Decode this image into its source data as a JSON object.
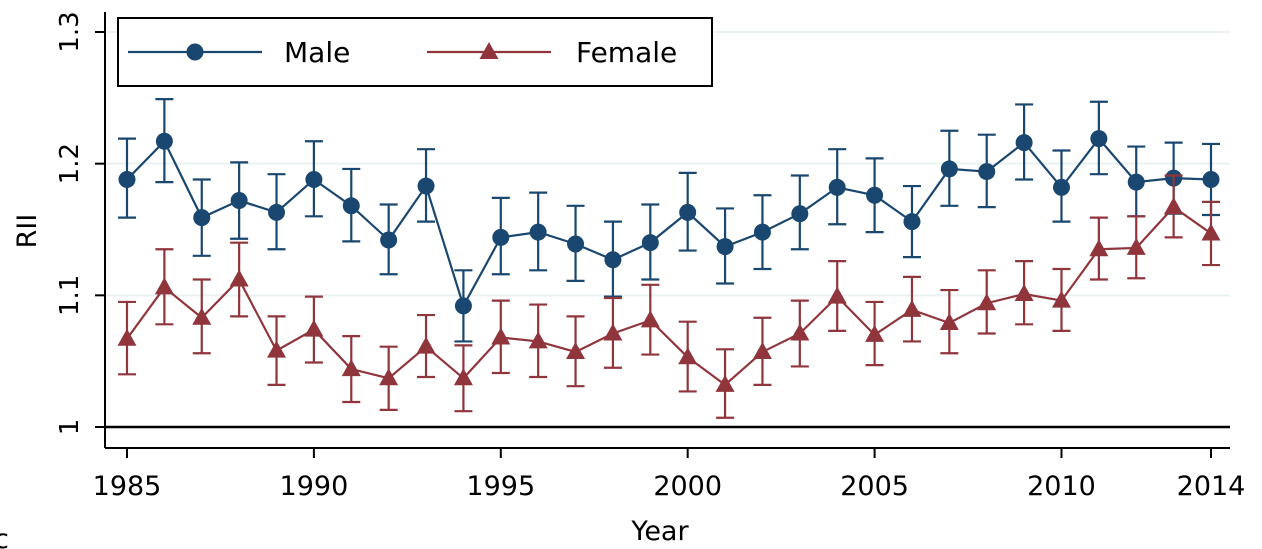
{
  "chart_data": {
    "type": "line",
    "xlabel": "Year",
    "ylabel": "RII",
    "xlim": [
      1984.4,
      2015
    ],
    "ylim": [
      0.965,
      1.305
    ],
    "x_ticks": [
      1985,
      1990,
      1995,
      2000,
      2005,
      2010,
      2014
    ],
    "y_ticks": [
      1,
      1.1,
      1.2,
      1.3
    ],
    "y_tick_labels": [
      "1",
      "1.1",
      "1.2",
      "1.3"
    ],
    "reference_line": 1,
    "grid": "horizontal",
    "legend_placement": "top-left",
    "x": [
      1985,
      1986,
      1987,
      1988,
      1989,
      1990,
      1991,
      1992,
      1993,
      1994,
      1995,
      1996,
      1997,
      1998,
      1999,
      2000,
      2001,
      2002,
      2003,
      2004,
      2005,
      2006,
      2007,
      2008,
      2009,
      2010,
      2011,
      2012,
      2013,
      2014
    ],
    "series": [
      {
        "name": "Male",
        "color": "#1a476f",
        "marker": "circle",
        "values": [
          1.188,
          1.217,
          1.159,
          1.172,
          1.163,
          1.188,
          1.168,
          1.142,
          1.183,
          1.092,
          1.144,
          1.148,
          1.139,
          1.127,
          1.14,
          1.163,
          1.137,
          1.148,
          1.162,
          1.182,
          1.176,
          1.156,
          1.196,
          1.194,
          1.216,
          1.182,
          1.219,
          1.186,
          1.189,
          1.188
        ],
        "lower": [
          1.159,
          1.186,
          1.13,
          1.143,
          1.135,
          1.16,
          1.141,
          1.116,
          1.156,
          1.065,
          1.116,
          1.119,
          1.111,
          1.099,
          1.112,
          1.134,
          1.109,
          1.12,
          1.135,
          1.154,
          1.148,
          1.129,
          1.168,
          1.167,
          1.188,
          1.156,
          1.192,
          1.16,
          1.162,
          1.161
        ],
        "upper": [
          1.219,
          1.249,
          1.188,
          1.201,
          1.192,
          1.217,
          1.196,
          1.169,
          1.211,
          1.119,
          1.174,
          1.178,
          1.168,
          1.156,
          1.169,
          1.193,
          1.166,
          1.176,
          1.191,
          1.211,
          1.204,
          1.183,
          1.225,
          1.222,
          1.245,
          1.21,
          1.247,
          1.213,
          1.216,
          1.215
        ]
      },
      {
        "name": "Female",
        "color": "#90353b",
        "marker": "triangle",
        "values": [
          1.067,
          1.106,
          1.083,
          1.112,
          1.058,
          1.074,
          1.044,
          1.037,
          1.061,
          1.037,
          1.068,
          1.065,
          1.057,
          1.071,
          1.081,
          1.053,
          1.032,
          1.057,
          1.071,
          1.099,
          1.07,
          1.089,
          1.079,
          1.094,
          1.101,
          1.096,
          1.135,
          1.136,
          1.167,
          1.147
        ],
        "lower": [
          1.04,
          1.078,
          1.056,
          1.084,
          1.032,
          1.049,
          1.019,
          1.013,
          1.038,
          1.012,
          1.041,
          1.038,
          1.031,
          1.045,
          1.055,
          1.027,
          1.007,
          1.032,
          1.046,
          1.073,
          1.047,
          1.065,
          1.056,
          1.071,
          1.078,
          1.073,
          1.112,
          1.113,
          1.144,
          1.123
        ],
        "upper": [
          1.095,
          1.135,
          1.112,
          1.14,
          1.084,
          1.099,
          1.069,
          1.061,
          1.085,
          1.062,
          1.096,
          1.093,
          1.084,
          1.098,
          1.108,
          1.08,
          1.059,
          1.083,
          1.096,
          1.126,
          1.095,
          1.114,
          1.104,
          1.119,
          1.126,
          1.12,
          1.159,
          1.16,
          1.191,
          1.171
        ]
      }
    ]
  },
  "corner_mark": "c"
}
